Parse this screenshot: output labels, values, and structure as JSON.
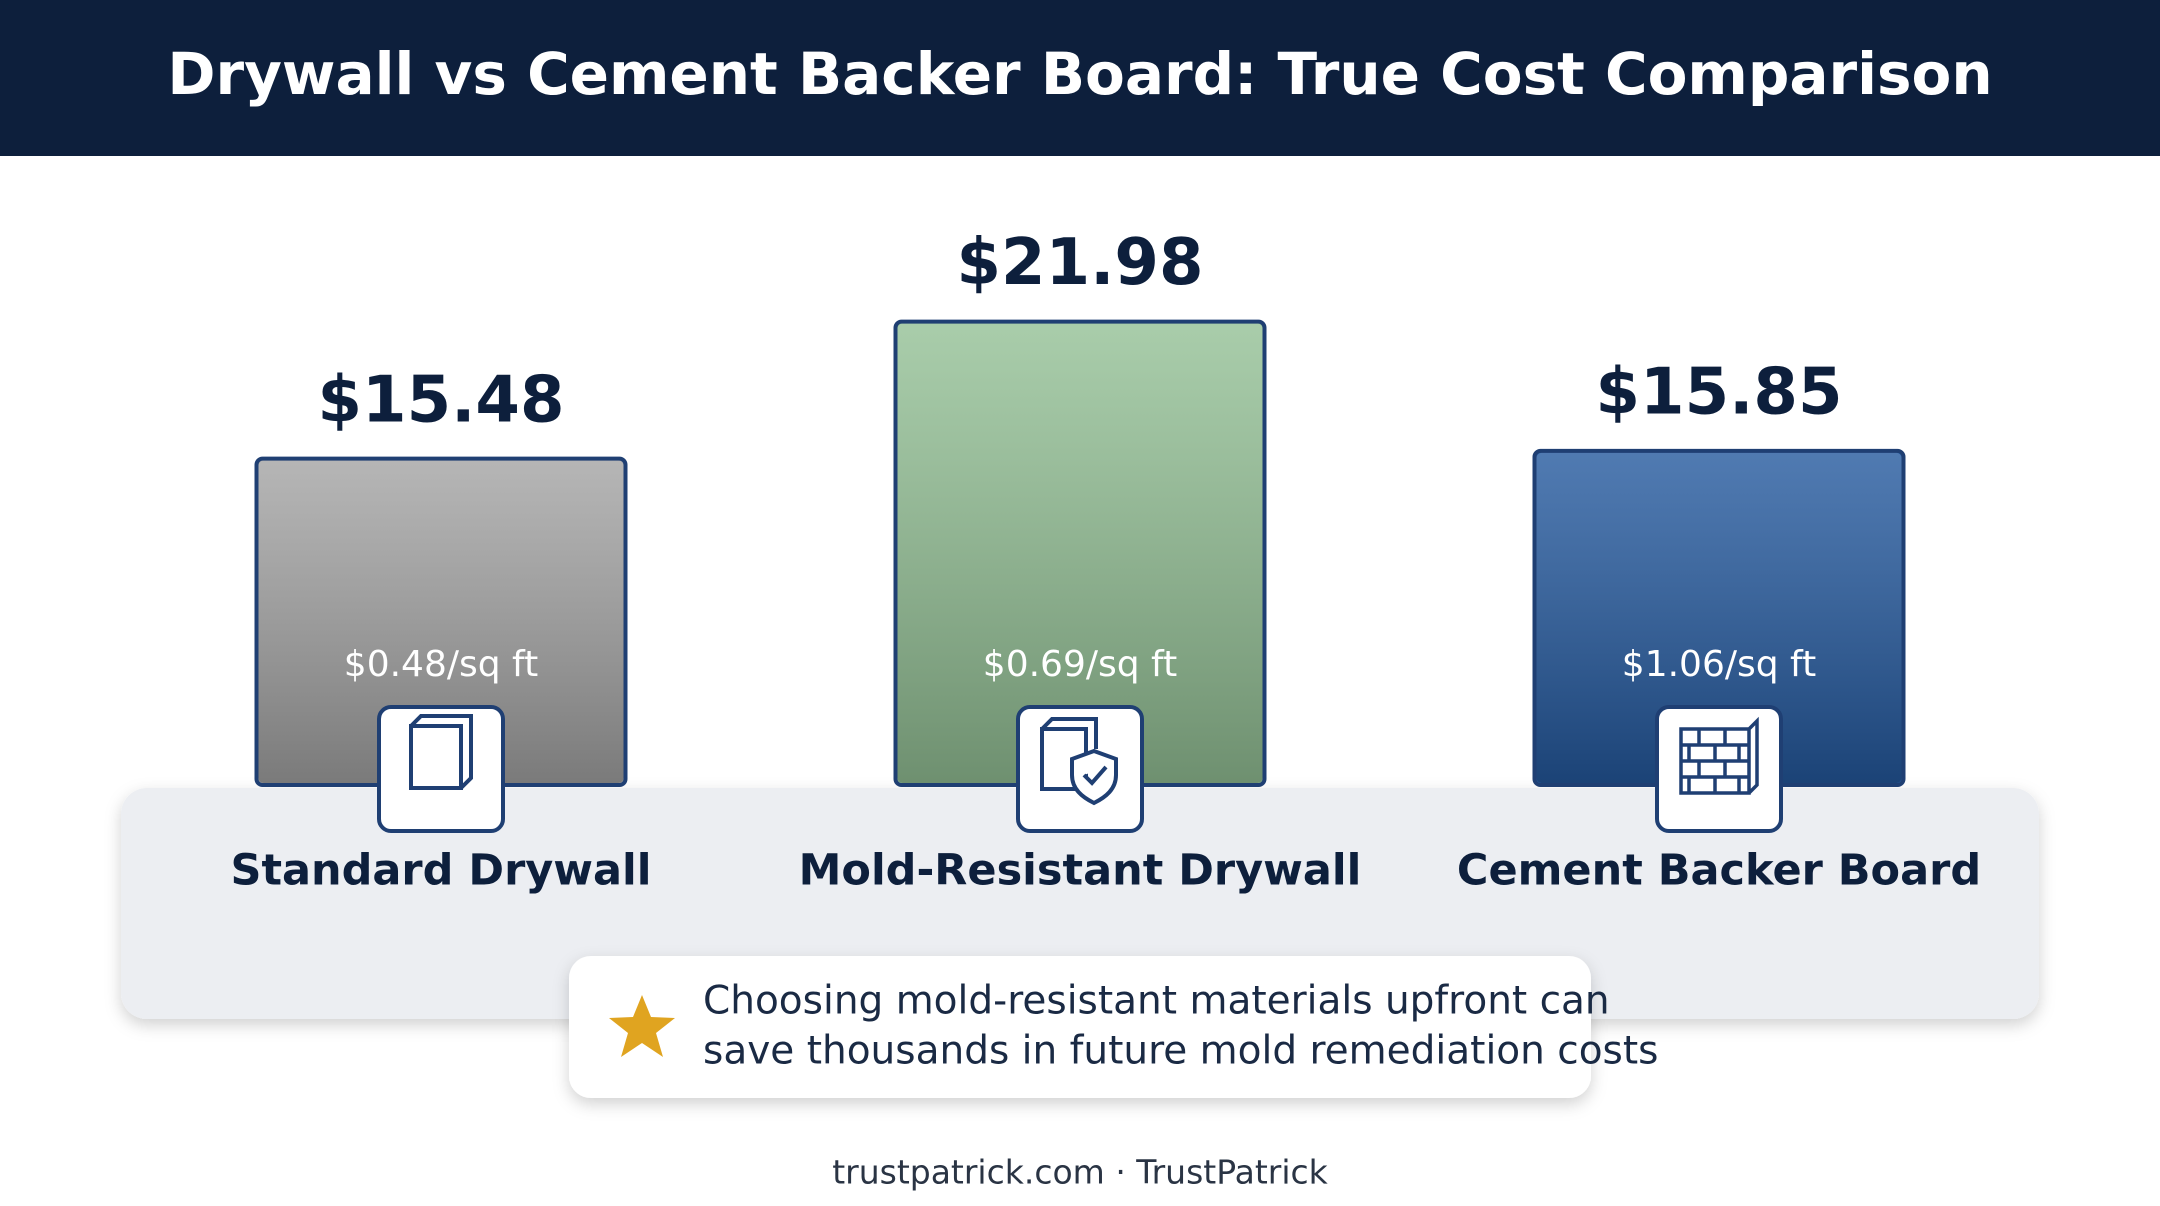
{
  "chart_data": {
    "type": "bar",
    "title": "Drywall vs Cement Backer Board: True Cost Comparison",
    "categories": [
      "Standard Drywall",
      "Mold-Resistant Drywall",
      "Cement Backer Board"
    ],
    "values": [
      15.48,
      21.98,
      15.85
    ],
    "value_labels": [
      "$15.48",
      "$21.98",
      "$15.85"
    ],
    "unit_price_labels": [
      "$0.48/sq ft",
      "$0.69/sq ft",
      "$1.06/sq ft"
    ],
    "colors": [
      "#a3a3a3",
      "#93c095",
      "#24599e"
    ],
    "callout": [
      "Choosing mold-resistant materials upfront can",
      "save thousands in future mold remediation costs"
    ],
    "footer": "trustpatrick.com · TrustPatrick"
  }
}
